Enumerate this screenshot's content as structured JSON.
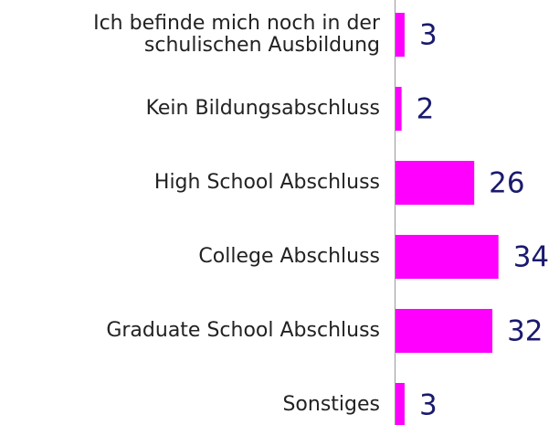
{
  "chart_data": {
    "type": "bar",
    "orientation": "horizontal",
    "categories": [
      "Ich befinde mich noch in der\nschulischen Ausbildung",
      "Kein Bildungsabschluss",
      "High School Abschluss",
      "College Abschluss",
      "Graduate School Abschluss",
      "Sonstiges"
    ],
    "values": [
      3,
      2,
      26,
      34,
      32,
      3
    ],
    "color": "#ff00ff",
    "value_label_color": "#1a1a6e",
    "xlim": [
      0,
      54
    ]
  }
}
